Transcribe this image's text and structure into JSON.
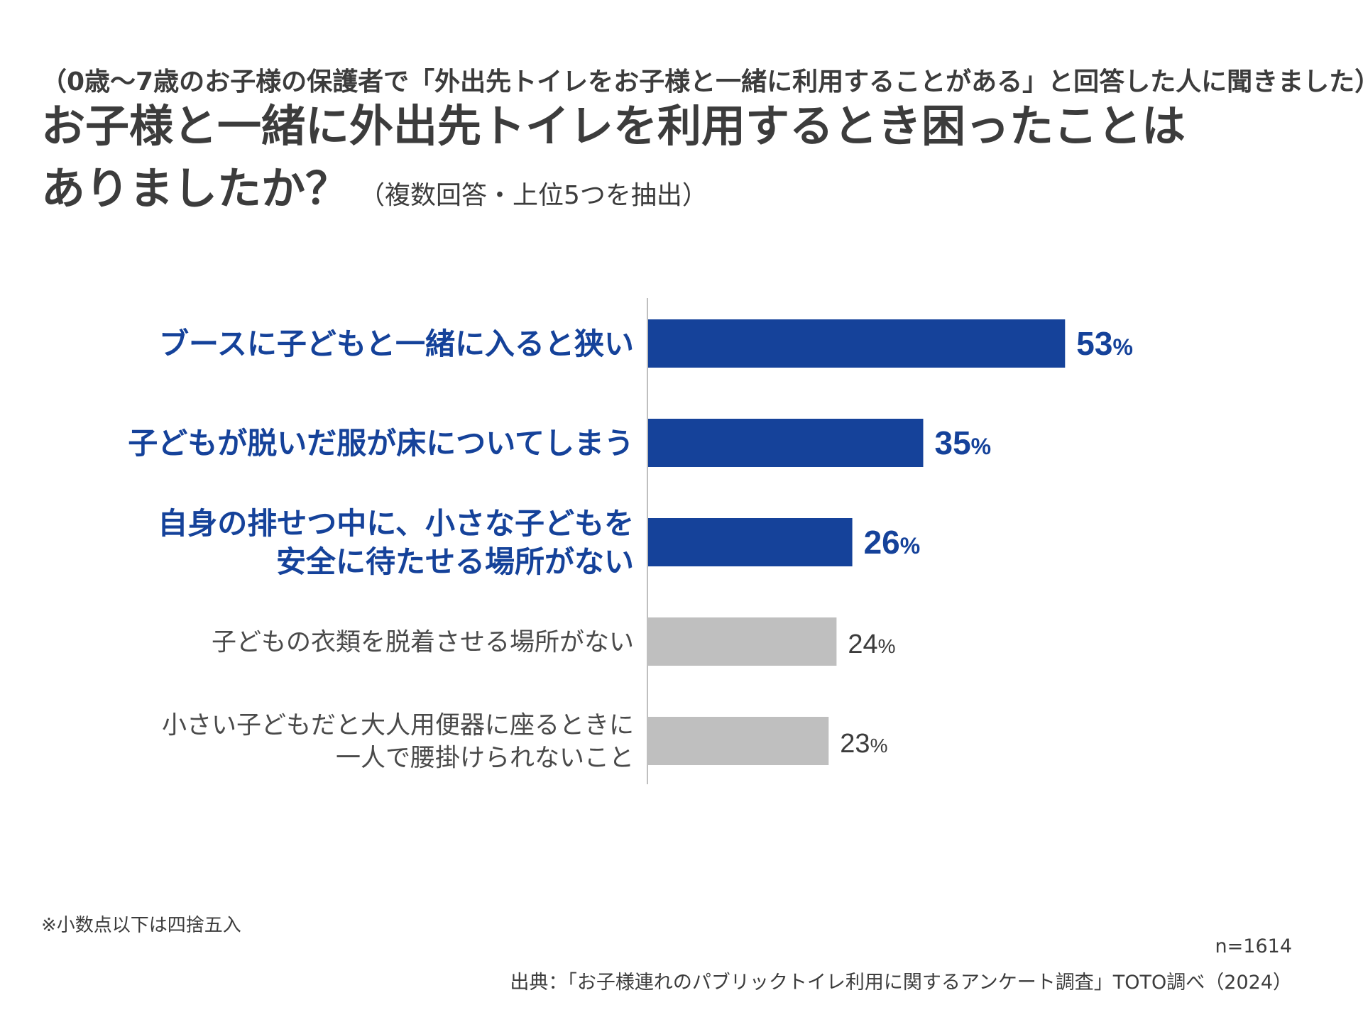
{
  "header": {
    "subtitle": "（0歳〜7歳のお子様の保護者で「外出先トイレをお子様と一緒に利用することがある」と回答した人に聞きました）",
    "title_line1": "お子様と一緒に外出先トイレを利用するとき困ったことは",
    "title_line2": "ありましたか？",
    "title_note": "（複数回答・上位5つを抽出）"
  },
  "chart_data": {
    "type": "bar",
    "orientation": "horizontal",
    "unit": "%",
    "categories": [
      [
        "ブースに子どもと一緒に入ると狭い"
      ],
      [
        "子どもが脱いだ服が床についてしまう"
      ],
      [
        "自身の排せつ中に、小さな子どもを",
        "安全に待たせる場所がない"
      ],
      [
        "子どもの衣類を脱着させる場所がない"
      ],
      [
        "小さい子どもだと大人用便器に座るときに",
        "一人で腰掛けられないこと"
      ]
    ],
    "values": [
      53,
      35,
      26,
      24,
      23
    ],
    "value_labels": [
      "53",
      "35",
      "26",
      "24",
      "23"
    ],
    "highlighted": [
      true,
      true,
      true,
      false,
      false
    ],
    "colors": {
      "highlight": "#15429a",
      "normal": "#bfbfbf",
      "axis": "#bfbfbf"
    },
    "xlim": [
      0,
      60
    ]
  },
  "footer": {
    "footnote": "※小数点以下は四捨五入",
    "n_label": "n=1614",
    "source": "出典：「お子様連れのパブリックトイレ利用に関するアンケート調査」TOTO調べ（2024）"
  }
}
